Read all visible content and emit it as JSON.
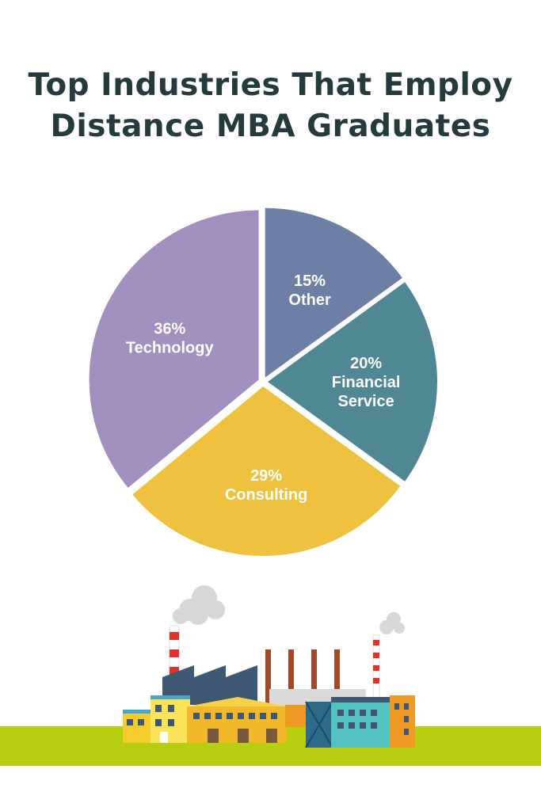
{
  "title_line1": "Top Industries That Employ",
  "title_line2": "Distance MBA Graduates",
  "colors": {
    "title": "#253a3c",
    "other": "#6e7fa6",
    "financial": "#4f8795",
    "consulting": "#eec13e",
    "technology": "#a08fbf",
    "ground": "#b8cf11"
  },
  "chart_data": {
    "type": "pie",
    "slices": [
      {
        "name": "Other",
        "percent_label": "15%",
        "label_line1": "Other",
        "label_line2": "",
        "value": 15,
        "color": "#6e7fa6"
      },
      {
        "name": "Financial Service",
        "percent_label": "20%",
        "label_line1": "Financial",
        "label_line2": "Service",
        "value": 20,
        "color": "#4f8795"
      },
      {
        "name": "Consulting",
        "percent_label": "29%",
        "label_line1": "Consulting",
        "label_line2": "",
        "value": 29,
        "color": "#eec13e"
      },
      {
        "name": "Technology",
        "percent_label": "36%",
        "label_line1": "Technology",
        "label_line2": "",
        "value": 36,
        "color": "#a08fbf"
      }
    ]
  }
}
